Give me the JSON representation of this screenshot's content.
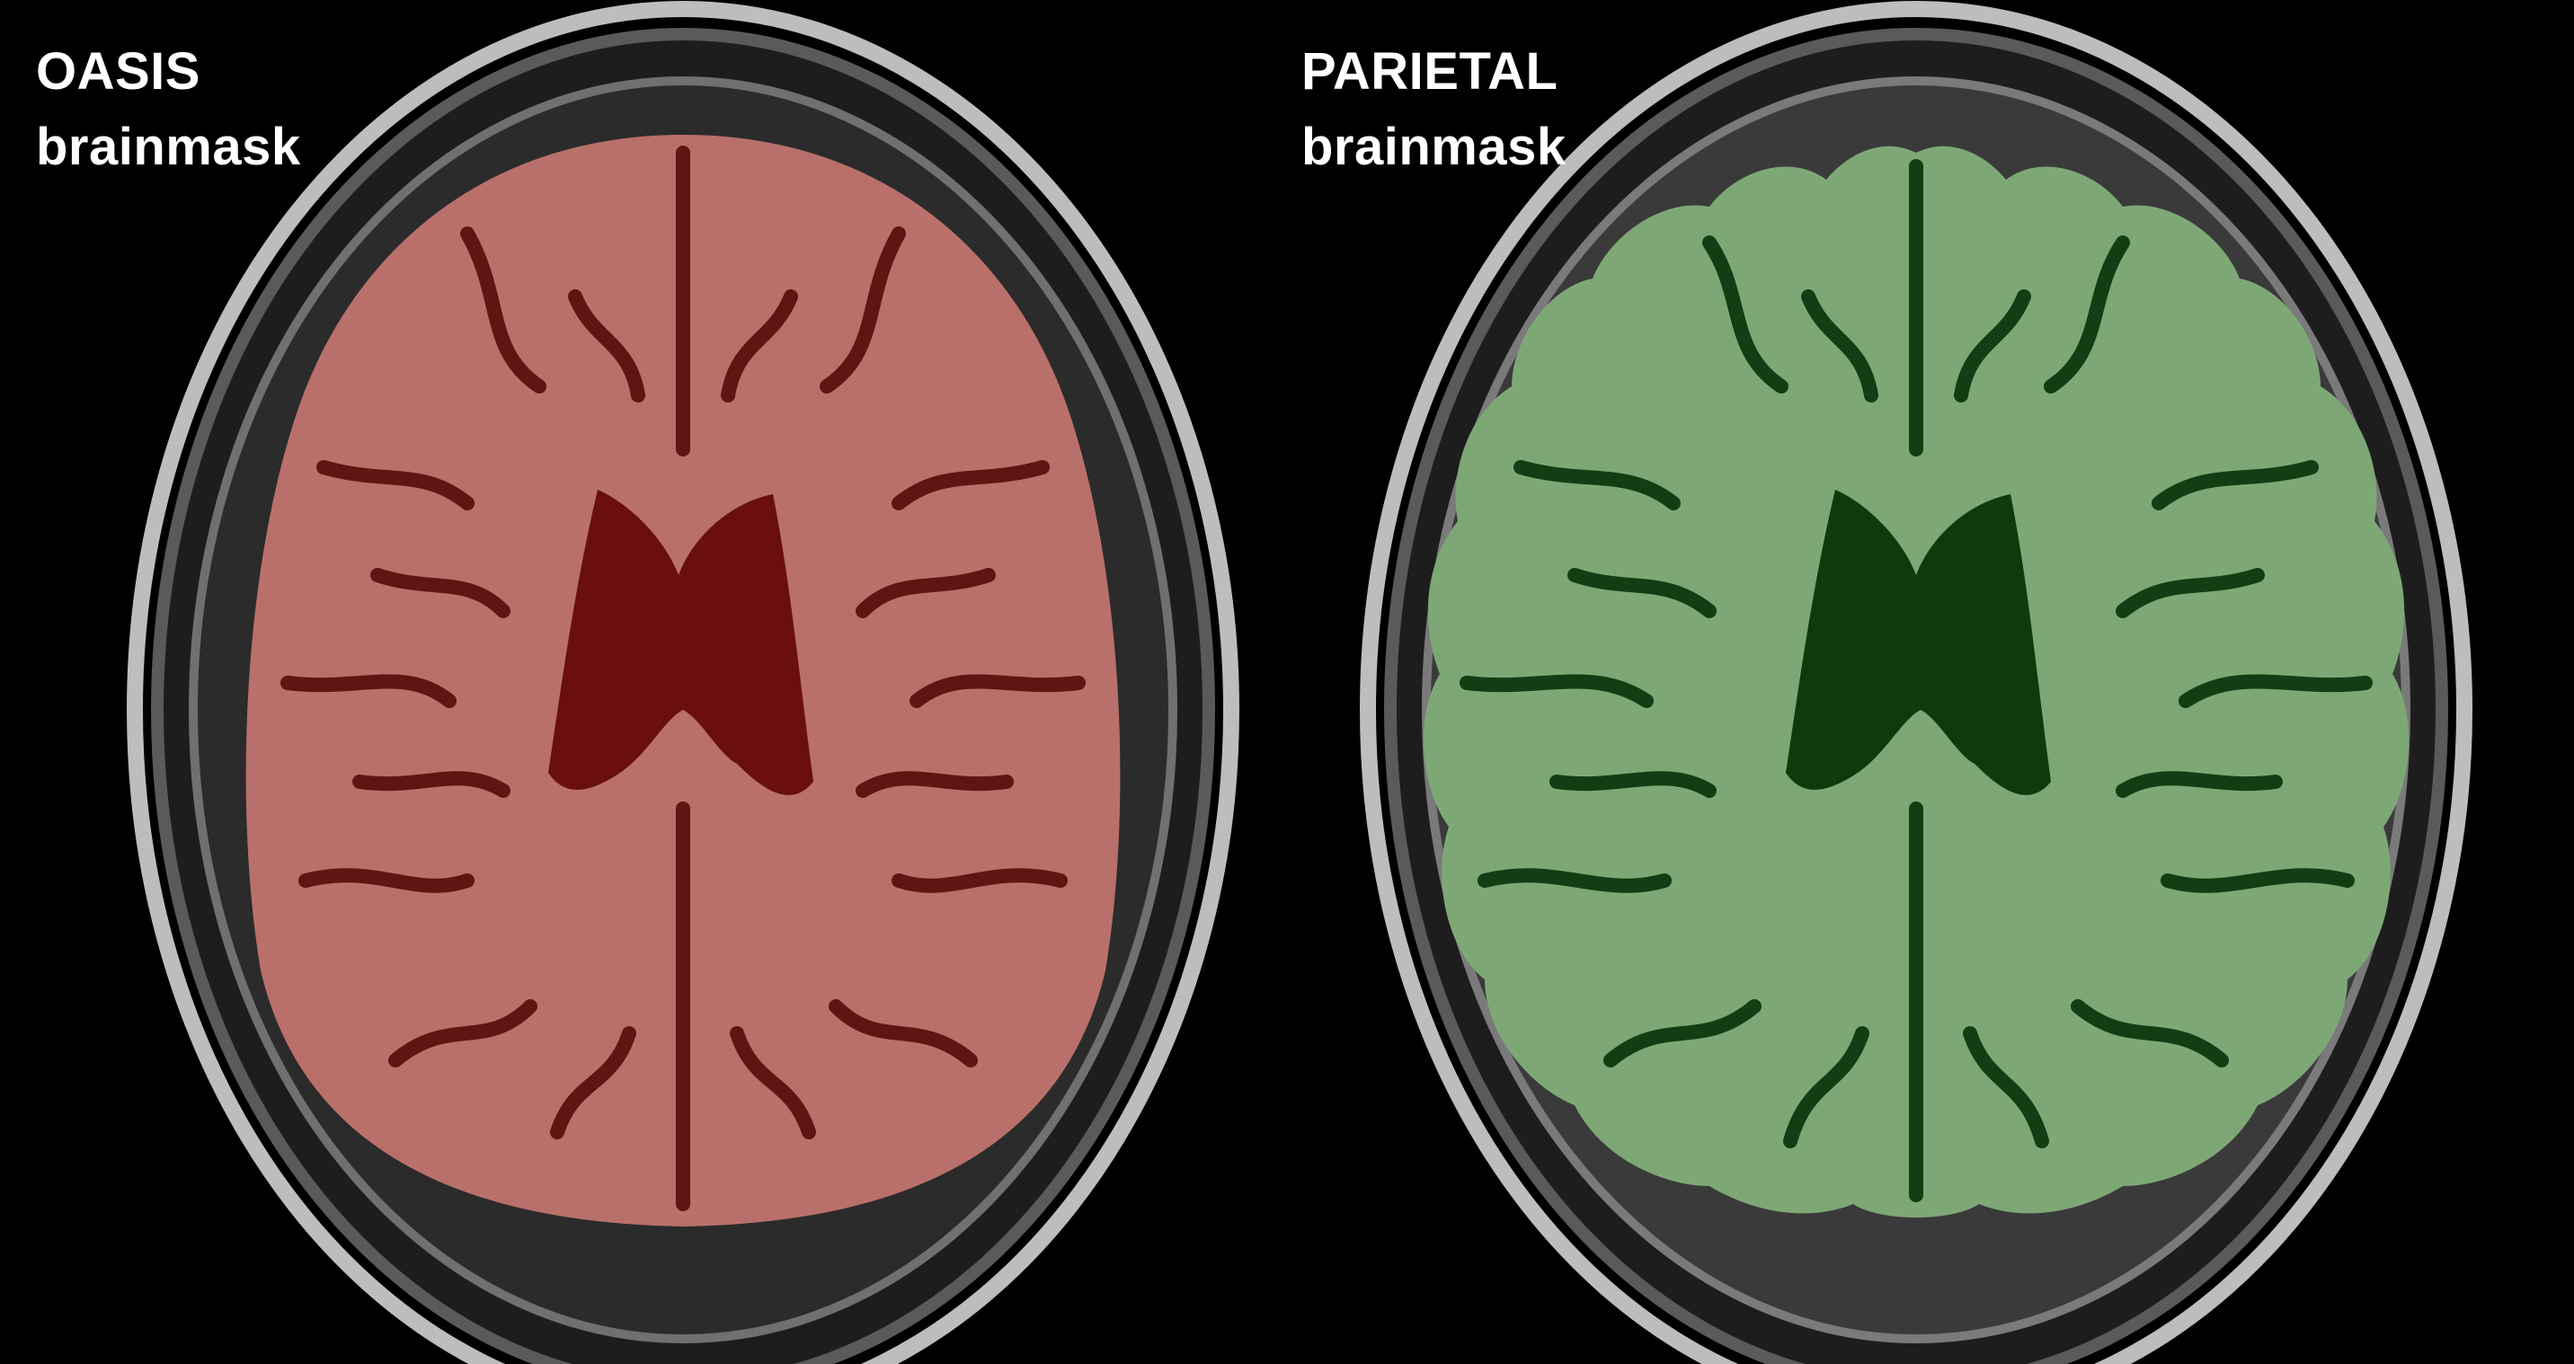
{
  "panels": [
    {
      "title_line1": "OASIS",
      "title_line2": "brainmask",
      "mask_color": "#8f3a36"
    },
    {
      "title_line1": "PARIETAL",
      "title_line2": "brainmask",
      "mask_color": "#4f8a4a"
    }
  ]
}
